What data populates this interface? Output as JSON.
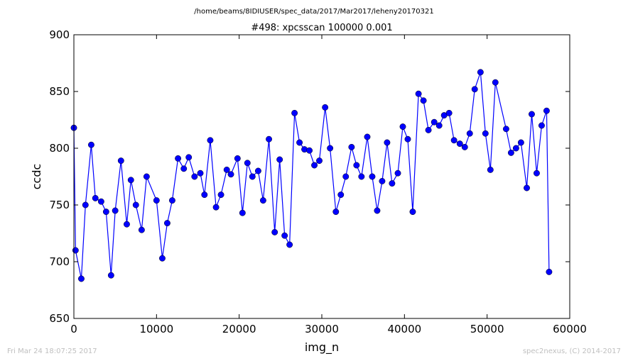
{
  "figure": {
    "suptitle": "/home/beams/8IDIUSER/spec_data/2017/Mar2017/leheny20170321",
    "footer_left": "Fri Mar 24 18:07:25 2017",
    "footer_right": "spec2nexus, (C) 2014-2017"
  },
  "chart_data": {
    "type": "line",
    "title": "#498: xpcsscan 100000 0.001",
    "xlabel": "img_n",
    "ylabel": "ccdc",
    "xlim": [
      0,
      60000
    ],
    "ylim": [
      650,
      900
    ],
    "xticks": [
      "0",
      "10000",
      "20000",
      "30000",
      "40000",
      "50000",
      "60000"
    ],
    "yticks": [
      "650",
      "700",
      "750",
      "800",
      "850",
      "900"
    ],
    "grid": false,
    "line_color": "#0000ff",
    "marker_color": "#0000ff",
    "marker": "circle",
    "series": [
      {
        "x": [
          0,
          200,
          900,
          1400,
          2100,
          2600,
          3300,
          3900,
          4500,
          5000,
          5700,
          6400,
          6900,
          7500,
          8200,
          8800,
          10000,
          10700,
          11300,
          11900,
          12600,
          13300,
          13900,
          14600,
          15300,
          15800,
          16500,
          17200,
          17800,
          18500,
          19000,
          19800,
          20400,
          21000,
          21600,
          22300,
          22900,
          23600,
          24300,
          24900,
          25500,
          26100,
          26700,
          27300,
          27900,
          28500,
          29100,
          29700,
          30400,
          31000,
          31700,
          32300,
          32900,
          33600,
          34200,
          34800,
          35500,
          36100,
          36700,
          37300,
          37900,
          38500,
          39200,
          39800,
          40400,
          41000,
          41700,
          42300,
          42900,
          43600,
          44200,
          44800,
          45400,
          46000,
          46700,
          47300,
          47900,
          48500,
          49200,
          49800,
          50400,
          51000,
          52300,
          52900,
          53500,
          54100,
          54800,
          55400,
          56000,
          56600,
          57200,
          57500
        ],
        "y": [
          818,
          710,
          685,
          750,
          803,
          756,
          753,
          744,
          688,
          745,
          789,
          733,
          772,
          750,
          728,
          775,
          754,
          703,
          734,
          754,
          791,
          782,
          792,
          775,
          778,
          759,
          807,
          748,
          759,
          781,
          777,
          791,
          743,
          787,
          775,
          780,
          754,
          808,
          726,
          790,
          723,
          715,
          831,
          805,
          799,
          798,
          785,
          789,
          836,
          800,
          744,
          759,
          775,
          801,
          785,
          775,
          810,
          775,
          745,
          771,
          805,
          769,
          778,
          819,
          808,
          744,
          848,
          842,
          816,
          823,
          820,
          829,
          831,
          807,
          804,
          801,
          813,
          852,
          867,
          813,
          781,
          858,
          817,
          796,
          800,
          805,
          765,
          830,
          778,
          820,
          833,
          691
        ]
      }
    ]
  }
}
